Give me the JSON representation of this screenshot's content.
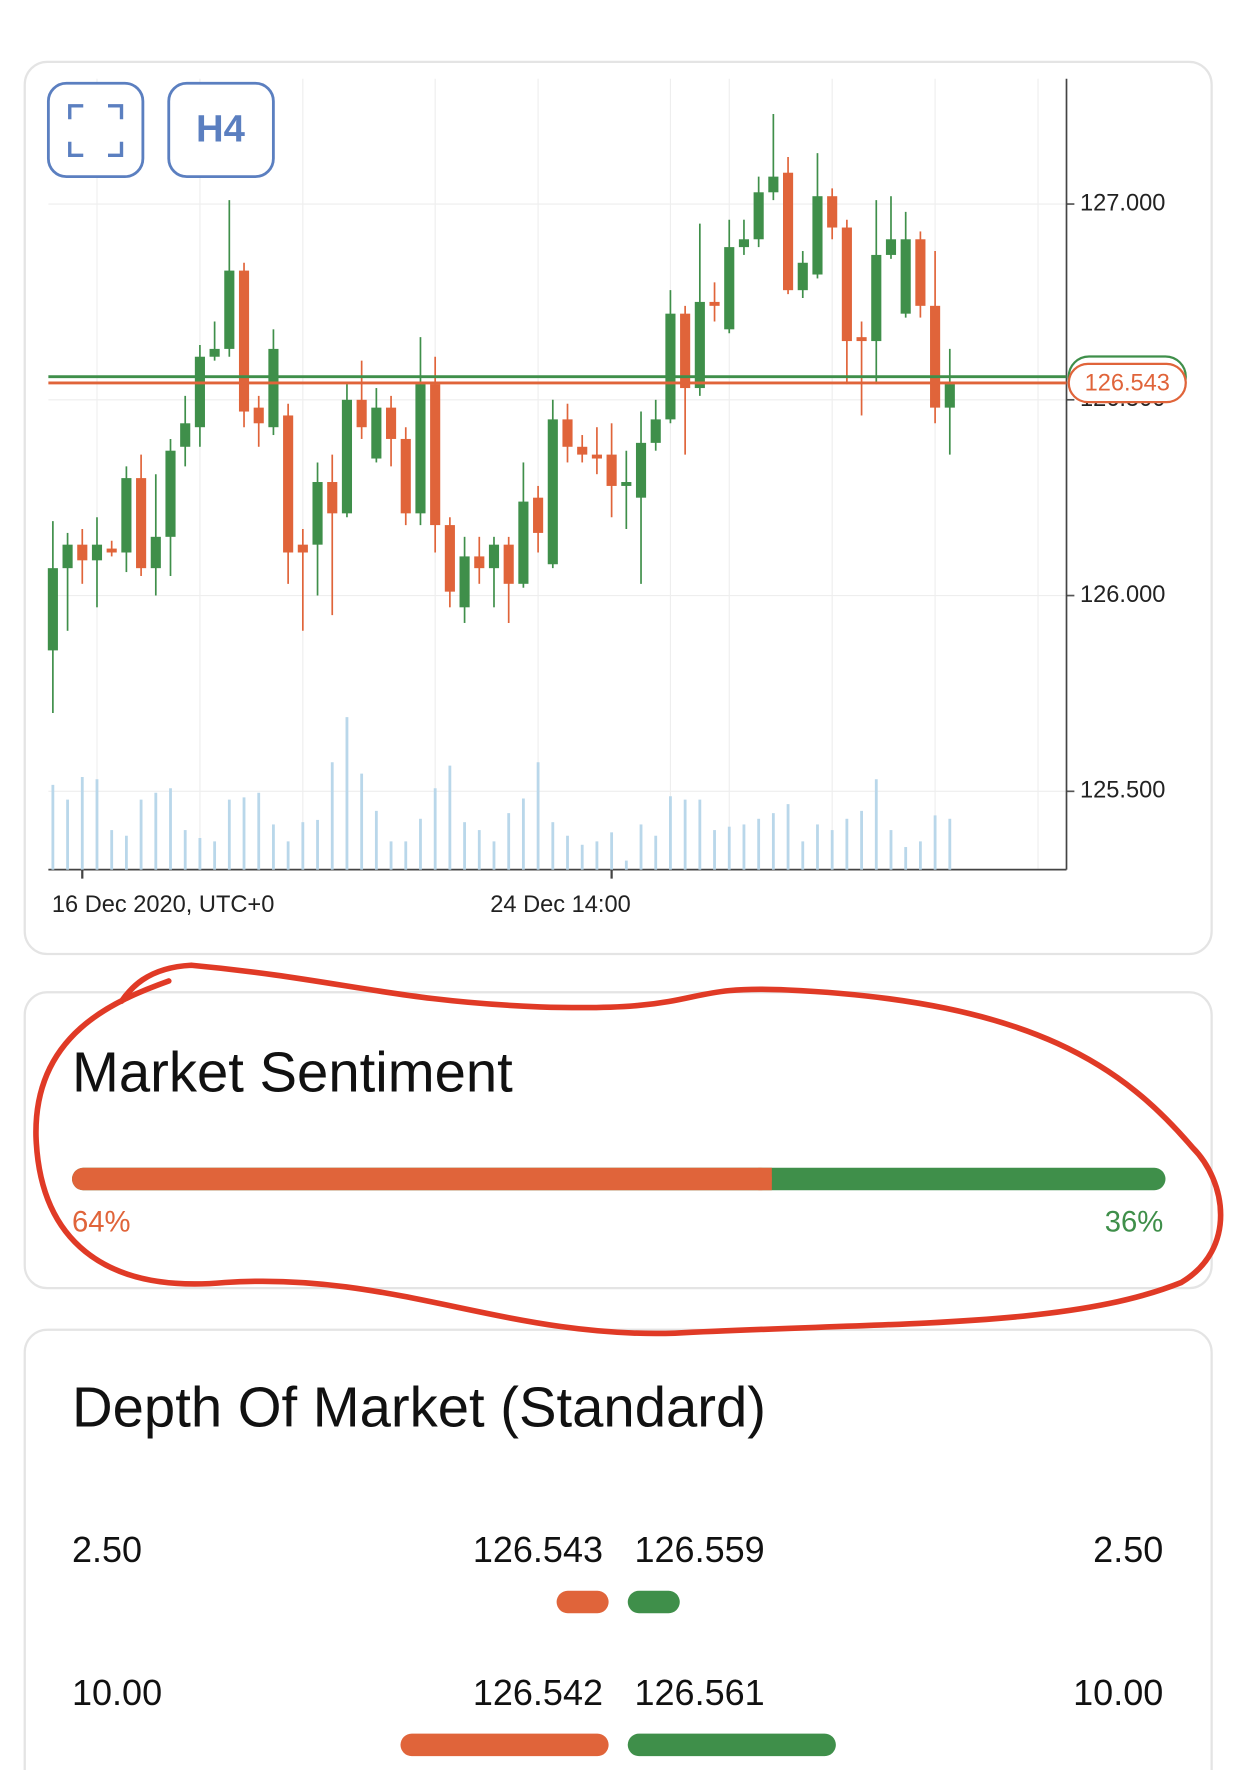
{
  "chart_data": {
    "type": "candlestick",
    "interval": "H4",
    "categories": [
      null,
      null,
      "16 Dec 2020, UTC+0",
      null,
      null,
      null,
      null,
      null,
      null,
      null,
      null,
      null,
      null,
      null,
      null,
      null,
      null,
      null,
      null,
      null,
      null,
      null,
      null,
      null,
      null,
      null,
      null,
      null,
      null,
      null,
      null,
      null,
      null,
      null,
      null,
      null,
      null,
      null,
      "24 Dec 14:00",
      null,
      null,
      null,
      null,
      null,
      null,
      null,
      null,
      null,
      null,
      null,
      null,
      null,
      null,
      null,
      null,
      null,
      null,
      null,
      null,
      null,
      null,
      null
    ],
    "open": [
      125.86,
      126.07,
      126.13,
      126.09,
      126.12,
      126.11,
      126.3,
      126.07,
      126.15,
      126.38,
      126.43,
      126.61,
      126.63,
      126.83,
      126.48,
      126.43,
      126.46,
      126.13,
      126.13,
      126.29,
      126.21,
      126.5,
      126.35,
      126.48,
      126.4,
      126.21,
      126.54,
      126.18,
      125.97,
      126.1,
      126.07,
      126.13,
      126.03,
      126.25,
      126.08,
      126.45,
      126.38,
      126.36,
      126.36,
      126.28,
      126.25,
      126.39,
      126.45,
      126.72,
      126.53,
      126.75,
      126.68,
      126.89,
      126.91,
      127.03,
      127.08,
      126.78,
      126.82,
      127.02,
      126.94,
      126.66,
      126.65,
      126.87,
      126.72,
      126.91,
      126.74,
      126.48
    ],
    "high": [
      126.19,
      126.16,
      126.17,
      126.2,
      126.14,
      126.33,
      126.36,
      126.31,
      126.4,
      126.51,
      126.64,
      126.7,
      127.01,
      126.85,
      126.51,
      126.68,
      126.49,
      126.17,
      126.34,
      126.36,
      126.54,
      126.6,
      126.53,
      126.51,
      126.43,
      126.66,
      126.61,
      126.2,
      126.15,
      126.15,
      126.15,
      126.15,
      126.34,
      126.28,
      126.5,
      126.49,
      126.41,
      126.43,
      126.44,
      126.37,
      126.47,
      126.5,
      126.78,
      126.74,
      126.95,
      126.8,
      126.96,
      126.96,
      127.07,
      127.23,
      127.12,
      126.88,
      127.13,
      127.04,
      126.96,
      126.7,
      127.01,
      127.02,
      126.98,
      126.93,
      126.88,
      126.63
    ],
    "low": [
      125.7,
      125.91,
      126.03,
      125.97,
      126.1,
      126.06,
      126.05,
      126.0,
      126.05,
      126.33,
      126.38,
      126.6,
      126.61,
      126.43,
      126.38,
      126.41,
      126.03,
      125.91,
      126.0,
      125.95,
      126.2,
      126.4,
      126.34,
      126.33,
      126.18,
      126.18,
      126.11,
      125.97,
      125.93,
      126.03,
      125.97,
      125.93,
      126.02,
      126.11,
      126.07,
      126.34,
      126.34,
      126.31,
      126.2,
      126.17,
      126.03,
      126.37,
      126.44,
      126.36,
      126.51,
      126.7,
      126.67,
      126.87,
      126.89,
      127.01,
      126.77,
      126.76,
      126.81,
      126.91,
      126.54,
      126.46,
      126.54,
      126.86,
      126.71,
      126.71,
      126.44,
      126.36
    ],
    "close": [
      126.07,
      126.13,
      126.09,
      126.13,
      126.11,
      126.3,
      126.07,
      126.15,
      126.37,
      126.44,
      126.61,
      126.63,
      126.83,
      126.47,
      126.44,
      126.63,
      126.11,
      126.11,
      126.29,
      126.21,
      126.5,
      126.43,
      126.48,
      126.4,
      126.21,
      126.54,
      126.18,
      126.01,
      126.1,
      126.07,
      126.13,
      126.03,
      126.24,
      126.16,
      126.45,
      126.38,
      126.36,
      126.35,
      126.28,
      126.29,
      126.39,
      126.45,
      126.72,
      126.53,
      126.75,
      126.74,
      126.89,
      126.91,
      127.03,
      127.07,
      126.78,
      126.85,
      127.02,
      126.94,
      126.65,
      126.65,
      126.87,
      126.91,
      126.91,
      126.74,
      126.48,
      126.54
    ],
    "volume": [
      75,
      62,
      82,
      80,
      35,
      30,
      62,
      68,
      72,
      35,
      28,
      25,
      62,
      64,
      68,
      40,
      25,
      42,
      44,
      95,
      135,
      85,
      52,
      25,
      25,
      45,
      72,
      92,
      42,
      35,
      25,
      50,
      63,
      95,
      42,
      30,
      22,
      25,
      33,
      8,
      40,
      30,
      65,
      62,
      62,
      35,
      38,
      40,
      45,
      50,
      58,
      25,
      40,
      35,
      45,
      52,
      80,
      35,
      20,
      25,
      48,
      45
    ],
    "vlim": [
      0,
      700
    ],
    "up_color": "#3f8f4a",
    "down_color": "#e0643a",
    "volume_color": "#b9d7ea",
    "ylim": [
      125.3,
      127.32
    ],
    "yticks": [
      {
        "value": 125.5,
        "label": "125.500"
      },
      {
        "value": 126,
        "label": "126.000"
      },
      {
        "value": 126.5,
        "label": "126.500"
      },
      {
        "value": 127,
        "label": "127.000"
      }
    ],
    "grid": true,
    "bid_line": 126.543,
    "ask_line": 126.559
  },
  "sentiment": {
    "title": "Market Sentiment",
    "sell": {
      "value": 64,
      "label": "64%"
    },
    "buy": {
      "value": 36,
      "label": "36%"
    }
  },
  "depth": {
    "title": "Depth Of Market (Standard)",
    "rows": [
      {
        "bid_volume": {
          "value": 2.5,
          "label": "2.50"
        },
        "bid": 126.543,
        "ask": 126.559,
        "ask_volume": {
          "value": 2.5,
          "label": "2.50"
        }
      },
      {
        "bid_volume": {
          "value": 10,
          "label": "10.00"
        },
        "bid": 126.542,
        "ask": 126.561,
        "ask_volume": {
          "value": 10,
          "label": "10.00"
        }
      }
    ]
  }
}
